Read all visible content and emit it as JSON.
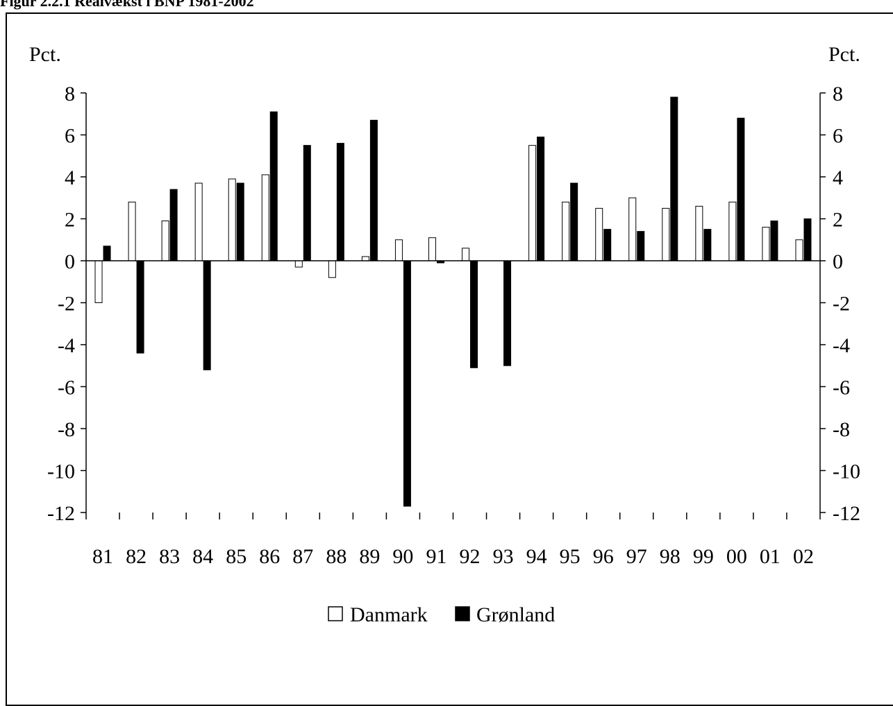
{
  "title": "Figur 2.2.1 Realvækst i BNP 1981-2002",
  "chart_data": {
    "type": "bar",
    "title": "Figur 2.2.1 Realvækst i BNP 1981-2002",
    "ylabel_left": "Pct.",
    "ylabel_right": "Pct.",
    "xlabel": "",
    "categories": [
      "81",
      "82",
      "83",
      "84",
      "85",
      "86",
      "87",
      "88",
      "89",
      "90",
      "91",
      "92",
      "93",
      "94",
      "95",
      "96",
      "97",
      "98",
      "99",
      "00",
      "01",
      "02"
    ],
    "series": [
      {
        "name": "Danmark",
        "color": "#ffffff",
        "values": [
          -2.0,
          2.8,
          1.9,
          3.7,
          3.9,
          4.1,
          -0.3,
          -0.8,
          0.2,
          1.0,
          1.1,
          0.6,
          0.0,
          5.5,
          2.8,
          2.5,
          3.0,
          2.5,
          2.6,
          2.8,
          1.6,
          1.0
        ]
      },
      {
        "name": "Grønland",
        "color": "#000000",
        "values": [
          0.7,
          -4.4,
          3.4,
          -5.2,
          3.7,
          7.1,
          5.5,
          5.6,
          6.7,
          -11.7,
          -0.1,
          -5.1,
          -5.0,
          5.9,
          3.7,
          1.5,
          1.4,
          7.8,
          1.5,
          6.8,
          1.9,
          2.0
        ]
      }
    ],
    "ylim": [
      -12,
      8
    ],
    "yticks": [
      8,
      6,
      4,
      2,
      0,
      -2,
      -4,
      -6,
      -8,
      -10,
      -12
    ],
    "grid": false,
    "legend_position": "bottom-center"
  }
}
